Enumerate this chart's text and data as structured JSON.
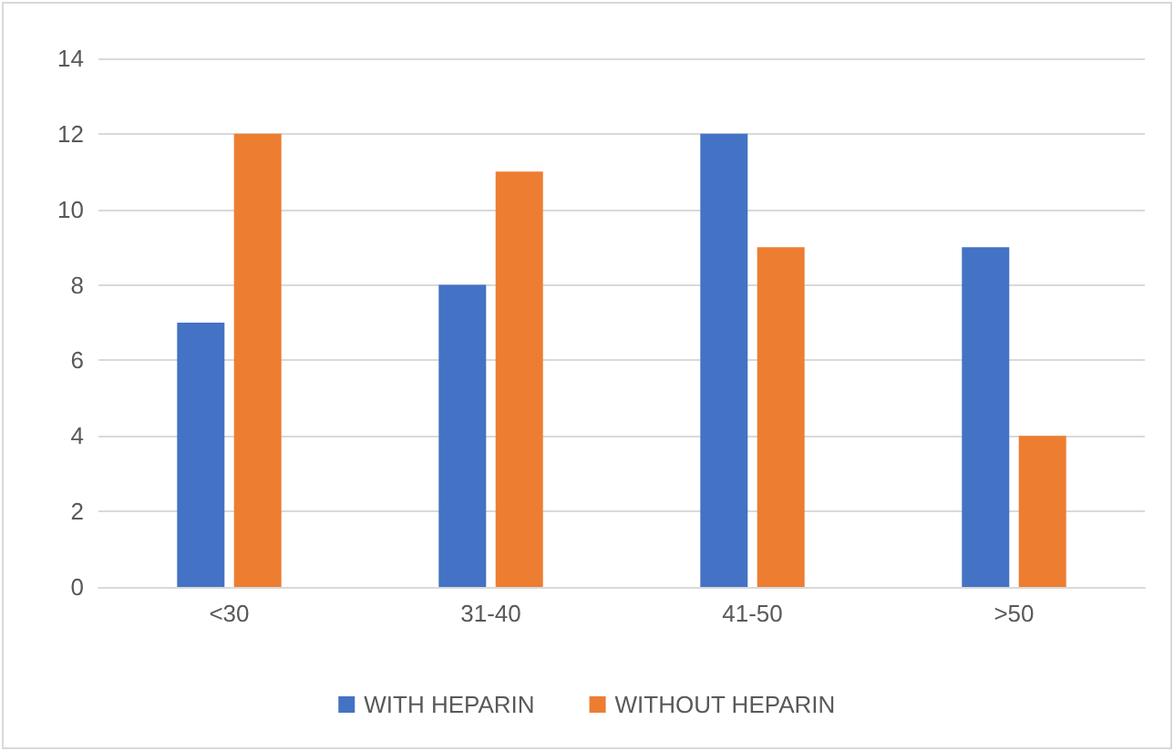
{
  "chart_data": {
    "type": "bar",
    "categories": [
      "<30",
      "31-40",
      "41-50",
      ">50"
    ],
    "series": [
      {
        "name": "WITH HEPARIN",
        "color": "#4472c4",
        "values": [
          7,
          8,
          12,
          9
        ]
      },
      {
        "name": "WITHOUT HEPARIN",
        "color": "#ed7d31",
        "values": [
          12,
          11,
          9,
          4
        ]
      }
    ],
    "ylim": [
      0,
      14
    ],
    "yticks": [
      0,
      2,
      4,
      6,
      8,
      10,
      12,
      14
    ],
    "grid": "y",
    "legend": "bottom"
  }
}
